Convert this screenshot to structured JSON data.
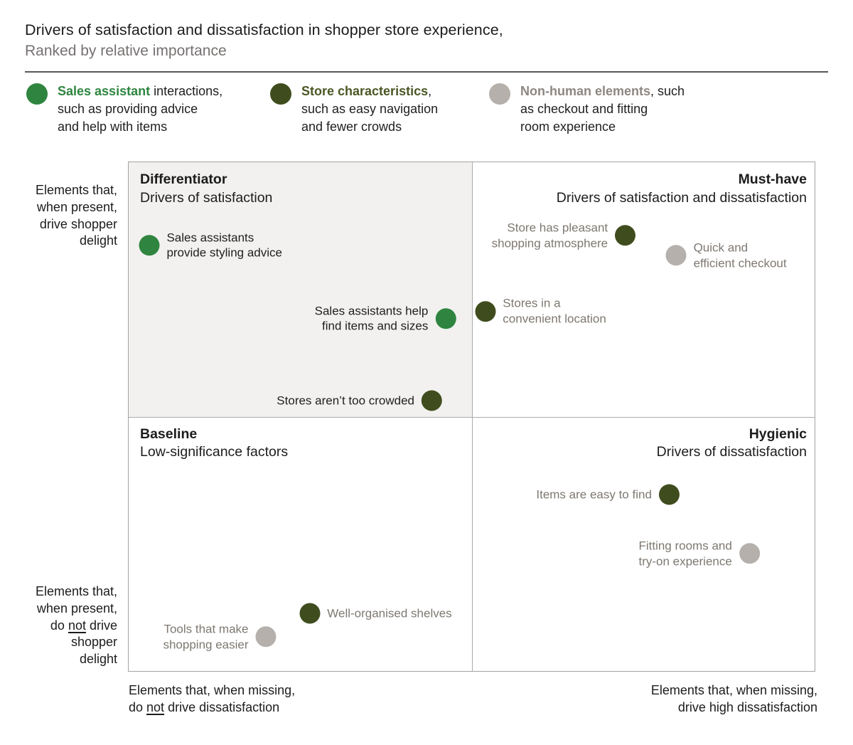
{
  "page": {
    "title": "Drivers of satisfaction and dissatisfaction in shopper store experience,",
    "subtitle": "Ranked by relative importance"
  },
  "colors": {
    "dots": {
      "sales_assistant": "#2f8540",
      "store_characteristics": "#3f4d1e",
      "non_human": "#b5b0ab"
    },
    "legend_lead": {
      "sales_assistant": "#2f8540",
      "store_characteristics": "#4a5724",
      "non_human": "#8d8781"
    },
    "muted_label_text": "#7e8871",
    "dark_label_text": "#1f1f1f",
    "quadrant_shade": "#f2f1ef"
  },
  "legend": {
    "items": [
      {
        "id": "sales_assistant",
        "lead": "Sales assistant",
        "rest": " interactions,\nsuch as providing advice\nand help with items"
      },
      {
        "id": "store_characteristics",
        "lead": "Store characteristics",
        "rest": ",\nsuch as easy navigation\nand fewer crowds"
      },
      {
        "id": "non_human",
        "lead": "Non-human elements",
        "rest": ", such\nas checkout and fitting\nroom experience"
      }
    ]
  },
  "axes": {
    "y_top": "Elements that,\nwhen present,\ndrive shopper\ndelight",
    "y_bottom": {
      "pre": "Elements that,\nwhen present,\ndo ",
      "underline": "not",
      "post": " drive\nshopper\ndelight"
    },
    "x_left": {
      "pre": "Elements that, when missing,\ndo ",
      "underline": "not",
      "post": " drive dissatisfaction"
    },
    "x_right": "Elements that, when missing,\ndrive high dissatisfaction"
  },
  "quadrants": {
    "top_left": {
      "name": "Differentiator",
      "desc": "Drivers of satisfaction"
    },
    "top_right": {
      "name": "Must-have",
      "desc": "Drivers of satisfaction and dissatisfaction"
    },
    "bottom_left": {
      "name": "Baseline",
      "desc": "Low-significance factors"
    },
    "bottom_right": {
      "name": "Hygienic",
      "desc": "Drivers of dissatisfaction"
    }
  },
  "chart_data": {
    "type": "scatter",
    "title": "Drivers of satisfaction and dissatisfaction in shopper store experience,",
    "subtitle": "Ranked by relative importance",
    "xlabel_low": "Elements that, when missing, do not drive dissatisfaction",
    "xlabel_high": "Elements that, when missing, drive high dissatisfaction",
    "ylabel_high": "Elements that, when present, drive shopper delight",
    "ylabel_low": "Elements that, when present, do not drive shopper delight",
    "grid": "2x2 quadrant matrix",
    "legend_position": "top",
    "points": [
      {
        "label": "Sales assistants\nprovide styling advice",
        "category": "sales_assistant",
        "quadrant": "Differentiator",
        "x_pct": 3.0,
        "y_pct": 16.3,
        "label_side": "right",
        "muted": false
      },
      {
        "label": "Sales assistants help\nfind items and sizes",
        "category": "sales_assistant",
        "quadrant": "Differentiator",
        "x_pct": 46.2,
        "y_pct": 30.7,
        "label_side": "left",
        "muted": false
      },
      {
        "label": "Stores aren’t too crowded",
        "category": "store_characteristics",
        "quadrant": "Differentiator",
        "x_pct": 44.2,
        "y_pct": 46.9,
        "label_side": "left",
        "muted": false
      },
      {
        "label": "Store has pleasant\nshopping atmosphere",
        "category": "store_characteristics",
        "quadrant": "Must-have",
        "x_pct": 72.4,
        "y_pct": 14.4,
        "label_side": "left",
        "muted": true
      },
      {
        "label": "Quick and\nefficient checkout",
        "category": "non_human",
        "quadrant": "Must-have",
        "x_pct": 79.8,
        "y_pct": 18.3,
        "label_side": "right",
        "muted": true
      },
      {
        "label": "Stores in a\nconvenient location",
        "category": "store_characteristics",
        "quadrant": "Must-have",
        "x_pct": 52.0,
        "y_pct": 29.3,
        "label_side": "right",
        "muted": true
      },
      {
        "label": "Items are easy to find",
        "category": "store_characteristics",
        "quadrant": "Hygienic",
        "x_pct": 78.8,
        "y_pct": 65.3,
        "label_side": "left",
        "muted": true
      },
      {
        "label": "Fitting rooms and\ntry-on experience",
        "category": "non_human",
        "quadrant": "Hygienic",
        "x_pct": 90.5,
        "y_pct": 76.9,
        "label_side": "left",
        "muted": true
      },
      {
        "label": "Well-organised shelves",
        "category": "store_characteristics",
        "quadrant": "Baseline",
        "x_pct": 26.4,
        "y_pct": 88.7,
        "label_side": "right",
        "muted": true
      },
      {
        "label": "Tools that make\nshopping easier",
        "category": "non_human",
        "quadrant": "Baseline",
        "x_pct": 20.0,
        "y_pct": 93.3,
        "label_side": "left",
        "muted": true
      }
    ]
  }
}
